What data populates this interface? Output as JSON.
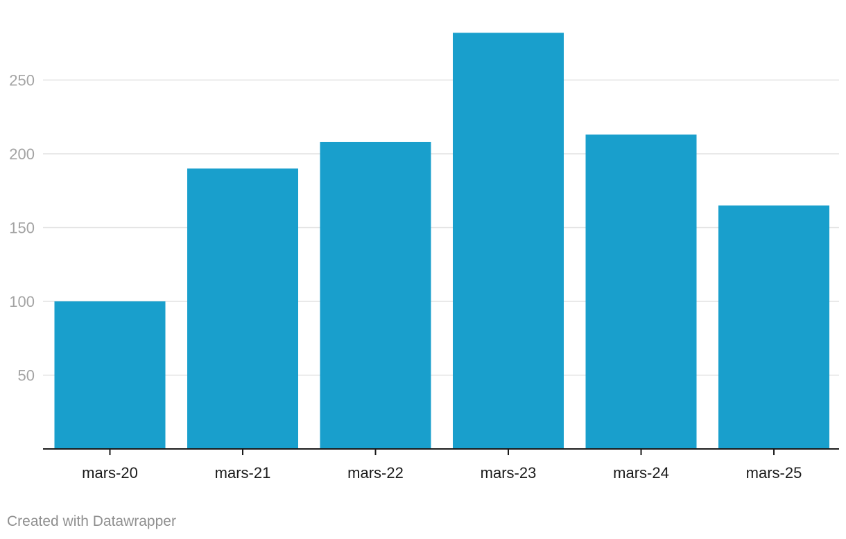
{
  "chart_data": {
    "type": "bar",
    "categories": [
      "mars-20",
      "mars-21",
      "mars-22",
      "mars-23",
      "mars-24",
      "mars-25"
    ],
    "values": [
      100,
      190,
      208,
      282,
      213,
      165
    ],
    "yticks": [
      50,
      100,
      150,
      200,
      250
    ],
    "ylim": [
      0,
      290
    ],
    "grid": true,
    "title": "",
    "xlabel": "",
    "ylabel": "",
    "colors": {
      "bar": "#199fcc",
      "grid": "#e2e2e2",
      "axis": "#1a1a1a",
      "y_tick_text": "#a3a3a3"
    }
  },
  "footer": {
    "credit": "Created with Datawrapper"
  }
}
